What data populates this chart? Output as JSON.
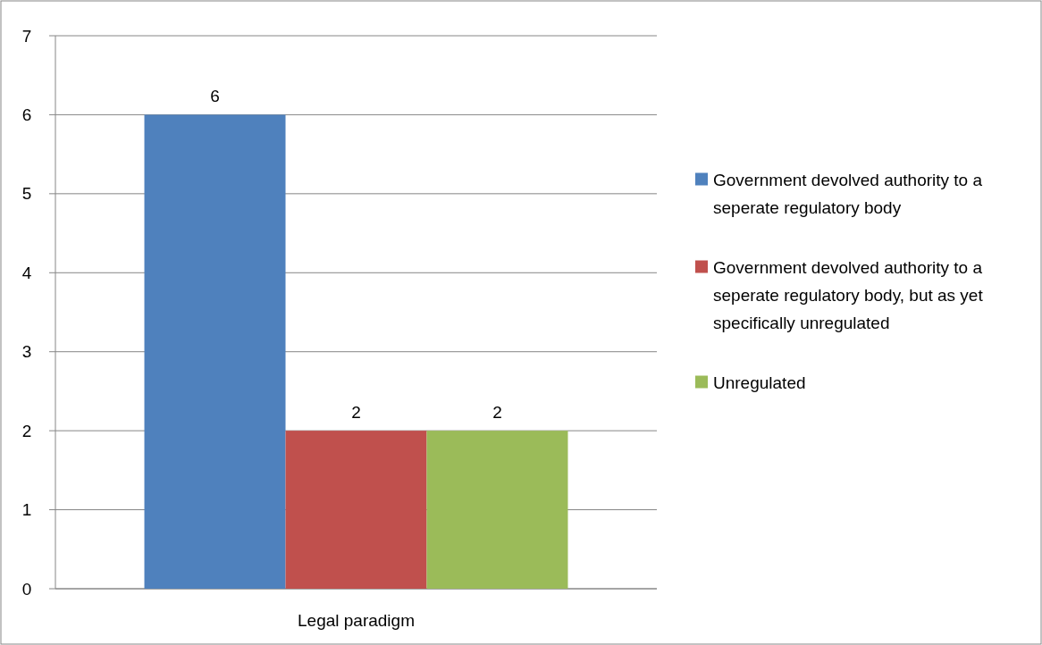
{
  "chart_data": {
    "type": "bar",
    "categories": [
      "Legal paradigm"
    ],
    "series": [
      {
        "name": "Government devolved authority to a seperate regulatory body",
        "color": "#4f81bd",
        "values": [
          6
        ]
      },
      {
        "name": "Government devolved authority to a seperate regulatory body, but as yet specifically unregulated",
        "color": "#c0504d",
        "values": [
          2
        ]
      },
      {
        "name": "Unregulated",
        "color": "#9bbb59",
        "values": [
          2
        ]
      }
    ],
    "ylim": [
      0,
      7
    ],
    "yticks": [
      0,
      1,
      2,
      3,
      4,
      5,
      6,
      7
    ],
    "grid": "y",
    "legend": "right",
    "data_labels": true
  }
}
